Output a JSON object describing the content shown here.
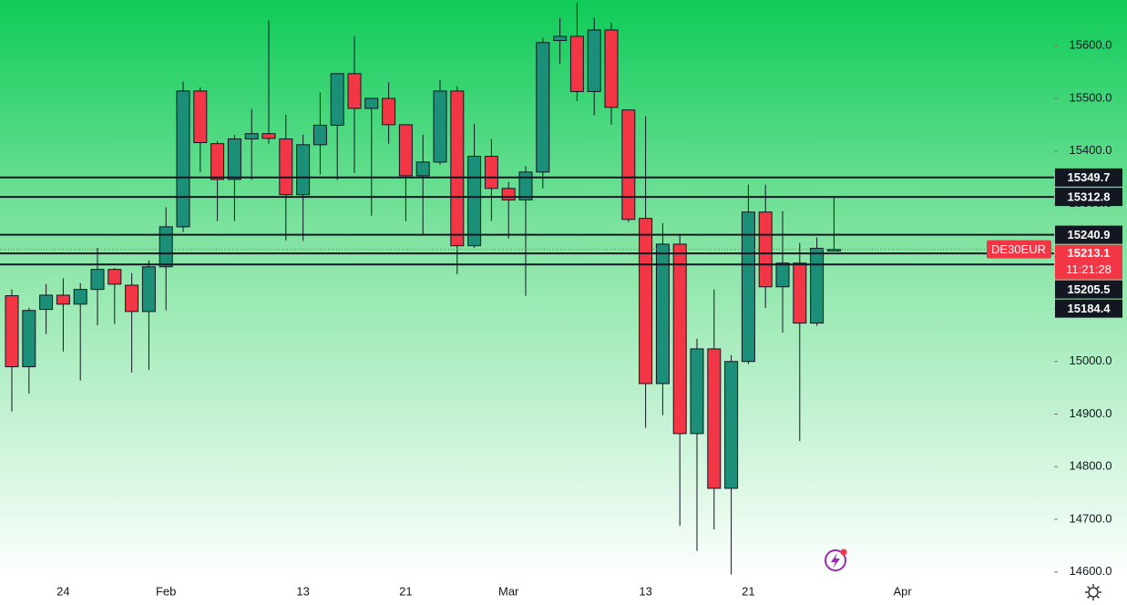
{
  "chart_data": {
    "type": "candlestick",
    "symbol": "DE30EUR",
    "countdown": "11:21:28",
    "categories": [
      null,
      null,
      null,
      "24",
      null,
      null,
      null,
      null,
      null,
      "Feb",
      null,
      null,
      null,
      null,
      null,
      null,
      null,
      "13",
      null,
      null,
      null,
      null,
      null,
      "21",
      null,
      null,
      null,
      null,
      null,
      "Mar",
      null,
      null,
      null,
      null,
      null,
      null,
      null,
      "13",
      null,
      null,
      null,
      null,
      null,
      "21",
      null,
      null,
      null,
      null,
      null,
      null,
      null,
      null,
      "Apr",
      null,
      null,
      null,
      null,
      null,
      null,
      null,
      null,
      null
    ],
    "open": [
      15125,
      14990,
      15099,
      15126,
      15109,
      15137,
      15175,
      15145,
      15095,
      15180,
      15256,
      15514,
      15414,
      15346,
      15423,
      15433,
      15423,
      15317,
      15412,
      15449,
      15547,
      15481,
      15500,
      15450,
      15353,
      15379,
      15514,
      15220,
      15390,
      15329,
      15307,
      15360,
      15610,
      15618,
      15513,
      15630,
      15478,
      15272,
      14958,
      15223,
      14863,
      15024,
      14759,
      15000,
      15284,
      15142,
      15187,
      15073,
      15210,
      null,
      null,
      null,
      null,
      null,
      null,
      null,
      null,
      null,
      null,
      null,
      null,
      null
    ],
    "high": [
      15137,
      15102,
      15147,
      15158,
      15149,
      15216,
      15178,
      15168,
      15192,
      15293,
      15532,
      15521,
      15419,
      15431,
      15480,
      15648,
      15469,
      15431,
      15511,
      15547,
      15618,
      15500,
      15531,
      15450,
      15431,
      15535,
      15523,
      15452,
      15423,
      15341,
      15371,
      15615,
      15653,
      15682,
      15653,
      15644,
      15478,
      15466,
      15263,
      15241,
      15043,
      15137,
      15012,
      15336,
      15336,
      15286,
      15225,
      15236,
      15313,
      null,
      null,
      null,
      null,
      null,
      null,
      null,
      null,
      null,
      null,
      null,
      null,
      null
    ],
    "low": [
      14905,
      14939,
      15052,
      15019,
      14964,
      15069,
      15071,
      14979,
      14984,
      15097,
      15246,
      15360,
      15267,
      15267,
      15345,
      15414,
      15230,
      15229,
      15355,
      15345,
      15358,
      15277,
      15414,
      15267,
      15242,
      15374,
      15166,
      15216,
      15267,
      15234,
      15125,
      15329,
      15566,
      15495,
      15468,
      15450,
      15265,
      14874,
      14898,
      14688,
      14640,
      14681,
      14595,
      14995,
      15102,
      15055,
      14849,
      15068,
      15210,
      null,
      null,
      null,
      null,
      null,
      null,
      null,
      null,
      null,
      null,
      null,
      null,
      null
    ],
    "close": [
      14990,
      15097,
      15126,
      15109,
      15137,
      15175,
      15147,
      15095,
      15180,
      15256,
      15514,
      15416,
      15346,
      15423,
      15433,
      15424,
      15317,
      15412,
      15449,
      15547,
      15481,
      15500,
      15450,
      15353,
      15379,
      15514,
      15220,
      15390,
      15329,
      15307,
      15360,
      15606,
      15618,
      15513,
      15630,
      15483,
      15270,
      14958,
      15223,
      14863,
      15024,
      14759,
      15000,
      15284,
      15142,
      15187,
      15073,
      15215,
      15213.1,
      null,
      null,
      null,
      null,
      null,
      null,
      null,
      null,
      null,
      null,
      null,
      null,
      null
    ],
    "up_color": "#1b8f78",
    "down_color": "#f23645",
    "ylim": [
      14584,
      15687
    ],
    "yticks": [
      {
        "value": 14600,
        "label": "14600.0"
      },
      {
        "value": 14700,
        "label": "14700.0"
      },
      {
        "value": 14800,
        "label": "14800.0"
      },
      {
        "value": 14900,
        "label": "14900.0"
      },
      {
        "value": 15000,
        "label": "15000.0"
      },
      {
        "value": 15100,
        "label": "15100.0"
      },
      {
        "value": 15200,
        "label": "15200.0"
      },
      {
        "value": 15300,
        "label": "15300.0"
      },
      {
        "value": 15400,
        "label": "15400.0"
      },
      {
        "value": 15500,
        "label": "15500.0"
      },
      {
        "value": 15600,
        "label": "15600.0"
      }
    ],
    "hlines": [
      15349.7,
      15312.8,
      15240.9,
      15205.5,
      15184.4
    ]
  }
}
